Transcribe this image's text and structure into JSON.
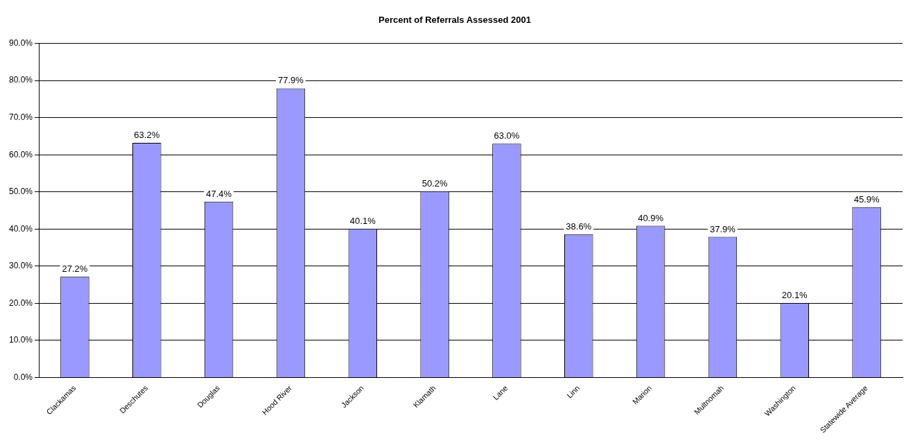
{
  "chart_data": {
    "type": "bar",
    "title": "Percent of Referrals Assessed 2001",
    "categories": [
      "Clackamas",
      "Deschutes",
      "Douglas",
      "Hood River",
      "Jackson",
      "Klamath",
      "Lane",
      "Linn",
      "Marion",
      "Multnomah",
      "Washington",
      "Statewide Average"
    ],
    "values": [
      27.2,
      63.2,
      47.4,
      77.9,
      40.1,
      50.2,
      63.0,
      38.6,
      40.9,
      37.9,
      20.1,
      45.9
    ],
    "value_labels": [
      "27.2%",
      "63.2%",
      "47.4%",
      "77.9%",
      "40.1%",
      "50.2%",
      "63.0%",
      "38.6%",
      "40.9%",
      "37.9%",
      "20.1%",
      "45.9%"
    ],
    "color": "#9999ff",
    "ylim": [
      0,
      90
    ],
    "yticks": [
      {
        "value": 0,
        "label": "0.0%"
      },
      {
        "value": 10,
        "label": "10.0%"
      },
      {
        "value": 20,
        "label": "20.0%"
      },
      {
        "value": 30,
        "label": "30.0%"
      },
      {
        "value": 40,
        "label": "40.0%"
      },
      {
        "value": 50,
        "label": "50.0%"
      },
      {
        "value": 60,
        "label": "60.0%"
      },
      {
        "value": 70,
        "label": "70.0%"
      },
      {
        "value": 80,
        "label": "80.0%"
      },
      {
        "value": 90,
        "label": "90.0%"
      }
    ],
    "grid": "y",
    "legend": false
  }
}
